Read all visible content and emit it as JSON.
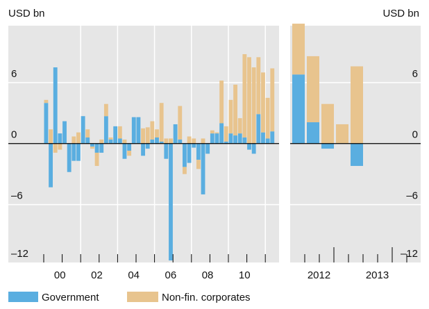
{
  "unit_left": "USD bn",
  "unit_right": "USD bn",
  "chart_data": [
    {
      "type": "bar",
      "stacked": true,
      "categories": [
        null,
        null,
        null,
        "00",
        null,
        null,
        null,
        null,
        null,
        null,
        null,
        "02",
        null,
        null,
        null,
        null,
        null,
        null,
        null,
        "04",
        null,
        null,
        null,
        null,
        null,
        null,
        null,
        "06",
        null,
        null,
        null,
        null,
        null,
        null,
        null,
        "08",
        null,
        null,
        null,
        null,
        null,
        null,
        null,
        "10",
        null,
        null,
        null,
        null,
        null,
        null
      ],
      "series": [
        {
          "name": "Government",
          "color": "#5aaee0",
          "values": [
            4.0,
            -4.3,
            7.5,
            1.0,
            2.2,
            -2.8,
            -1.7,
            -1.7,
            2.7,
            0.6,
            -0.3,
            -0.9,
            -0.9,
            2.7,
            0.4,
            1.7,
            0.5,
            -1.5,
            -0.7,
            2.6,
            2.6,
            -1.2,
            -0.5,
            0.4,
            0.6,
            0.2,
            -1.5,
            -11.5,
            1.9,
            0.4,
            -2.3,
            -1.9,
            -0.4,
            -1.6,
            -5.0,
            -1.0,
            1.0,
            1.0,
            2.0,
            0.2,
            1.0,
            0.8,
            1.0,
            0.6,
            -0.6,
            -1.0,
            2.9,
            1.1,
            0.5,
            1.2
          ]
        },
        {
          "name": "Non-fin. corporates",
          "color": "#e8c48e",
          "values": [
            0.3,
            1.4,
            -0.9,
            -0.6,
            0,
            0,
            0.7,
            1.1,
            0,
            0.8,
            -0.2,
            -1.3,
            0.4,
            1.2,
            0.2,
            0,
            1.2,
            0.4,
            -0.5,
            0,
            0,
            1.5,
            1.6,
            1.8,
            0.8,
            3.8,
            0.5,
            0.5,
            0,
            3.3,
            -0.7,
            0.7,
            0.5,
            -0.9,
            0.5,
            0,
            0.3,
            0.1,
            4.2,
            1.5,
            3.3,
            5.0,
            1.5,
            8.2,
            8.5,
            7.5,
            5.6,
            5.9,
            4.0,
            6.2
          ]
        }
      ],
      "ylim": [
        -11.7,
        11.6
      ],
      "yticks": [
        {
          "value": -12,
          "label": "–12"
        },
        {
          "value": -6,
          "label": "–6"
        },
        0,
        6
      ],
      "grid": true
    },
    {
      "type": "bar",
      "stacked": true,
      "categories": [
        null,
        "2012",
        null,
        null,
        null,
        "2013",
        null,
        null,
        null
      ],
      "series": [
        {
          "color": "#5aaee0",
          "values": [
            6.8,
            2.1,
            -0.5,
            0,
            -2.2,
            null,
            null,
            null,
            null
          ]
        },
        {
          "color": "#e8c48e",
          "values": [
            5.0,
            6.5,
            3.9,
            1.9,
            7.6,
            null,
            null,
            null,
            null
          ]
        }
      ],
      "ylim": [
        -11.7,
        11.6
      ],
      "yticks": [
        {
          "value": -12,
          "label": "–12"
        },
        {
          "value": -6,
          "label": "–6"
        },
        0,
        6
      ],
      "grid": true
    }
  ]
}
